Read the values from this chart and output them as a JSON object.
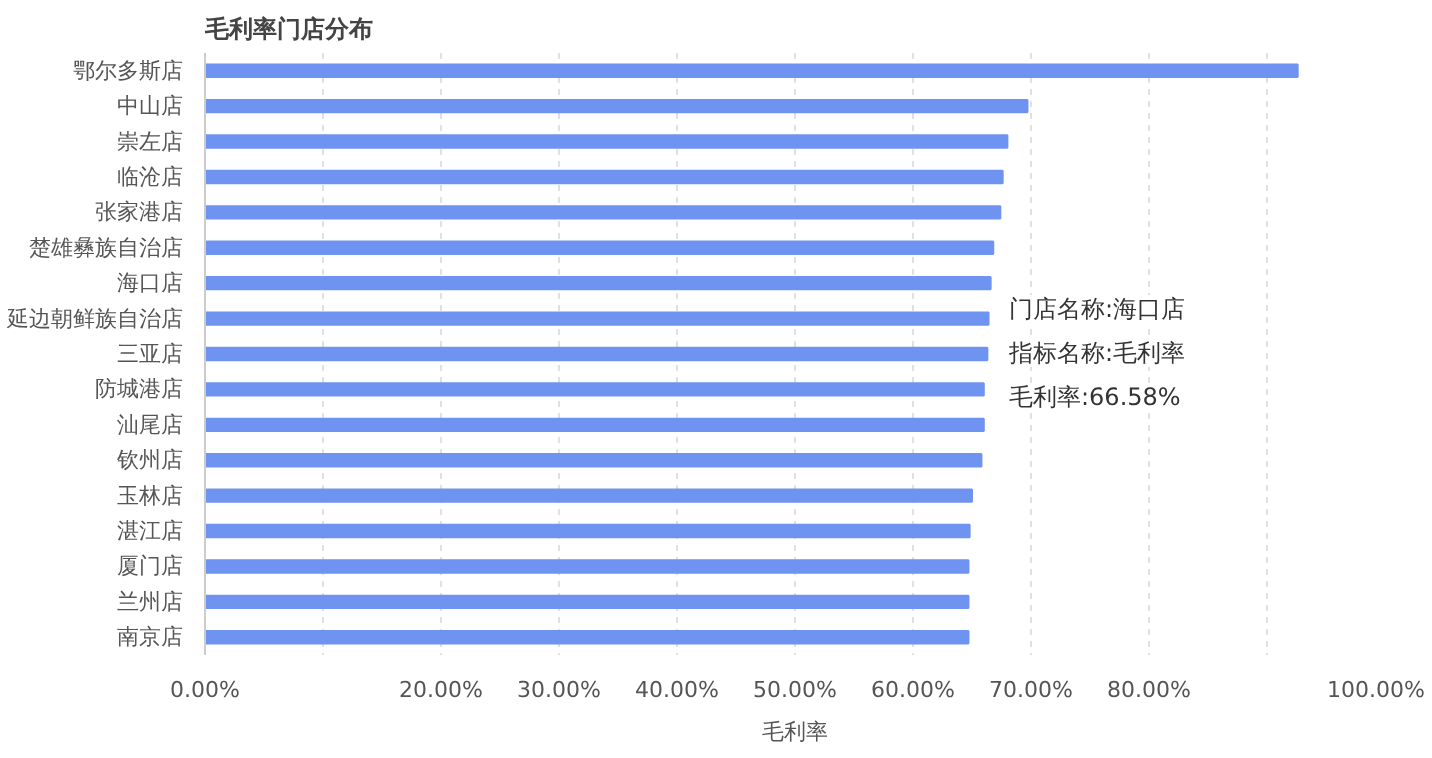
{
  "chart_data": {
    "type": "bar",
    "orientation": "horizontal",
    "title": "毛利率门店分布",
    "xlabel": "毛利率",
    "categories": [
      "鄂尔多斯店",
      "中山店",
      "崇左店",
      "临沧店",
      "张家港店",
      "楚雄彝族自治店",
      "海口店",
      "延边朝鲜族自治店",
      "三亚店",
      "防城港店",
      "汕尾店",
      "钦州店",
      "玉林店",
      "湛江店",
      "厦门店",
      "兰州店",
      "南京店"
    ],
    "values": [
      92.6,
      69.7,
      68.0,
      67.6,
      67.4,
      66.8,
      66.58,
      66.4,
      66.3,
      66.0,
      66.0,
      65.8,
      65.0,
      64.8,
      64.7,
      64.7,
      64.7
    ],
    "color": "#6f93f0",
    "xlim": [
      0,
      100
    ],
    "xticks": [
      {
        "value": 0,
        "label": "0.00%"
      },
      {
        "value": 10,
        "label": null
      },
      {
        "value": 20,
        "label": "20.00%"
      },
      {
        "value": 30,
        "label": "30.00%"
      },
      {
        "value": 40,
        "label": "40.00%"
      },
      {
        "value": 50,
        "label": "50.00%"
      },
      {
        "value": 60,
        "label": "60.00%"
      },
      {
        "value": 70,
        "label": "70.00%"
      },
      {
        "value": 80,
        "label": "80.00%"
      },
      {
        "value": 90,
        "label": null
      },
      {
        "value": 100,
        "label": "100.00%"
      }
    ],
    "grid": "x",
    "annotations": [
      "门店名称:海口店",
      "指标名称:毛利率",
      "毛利率:66.58%"
    ]
  }
}
